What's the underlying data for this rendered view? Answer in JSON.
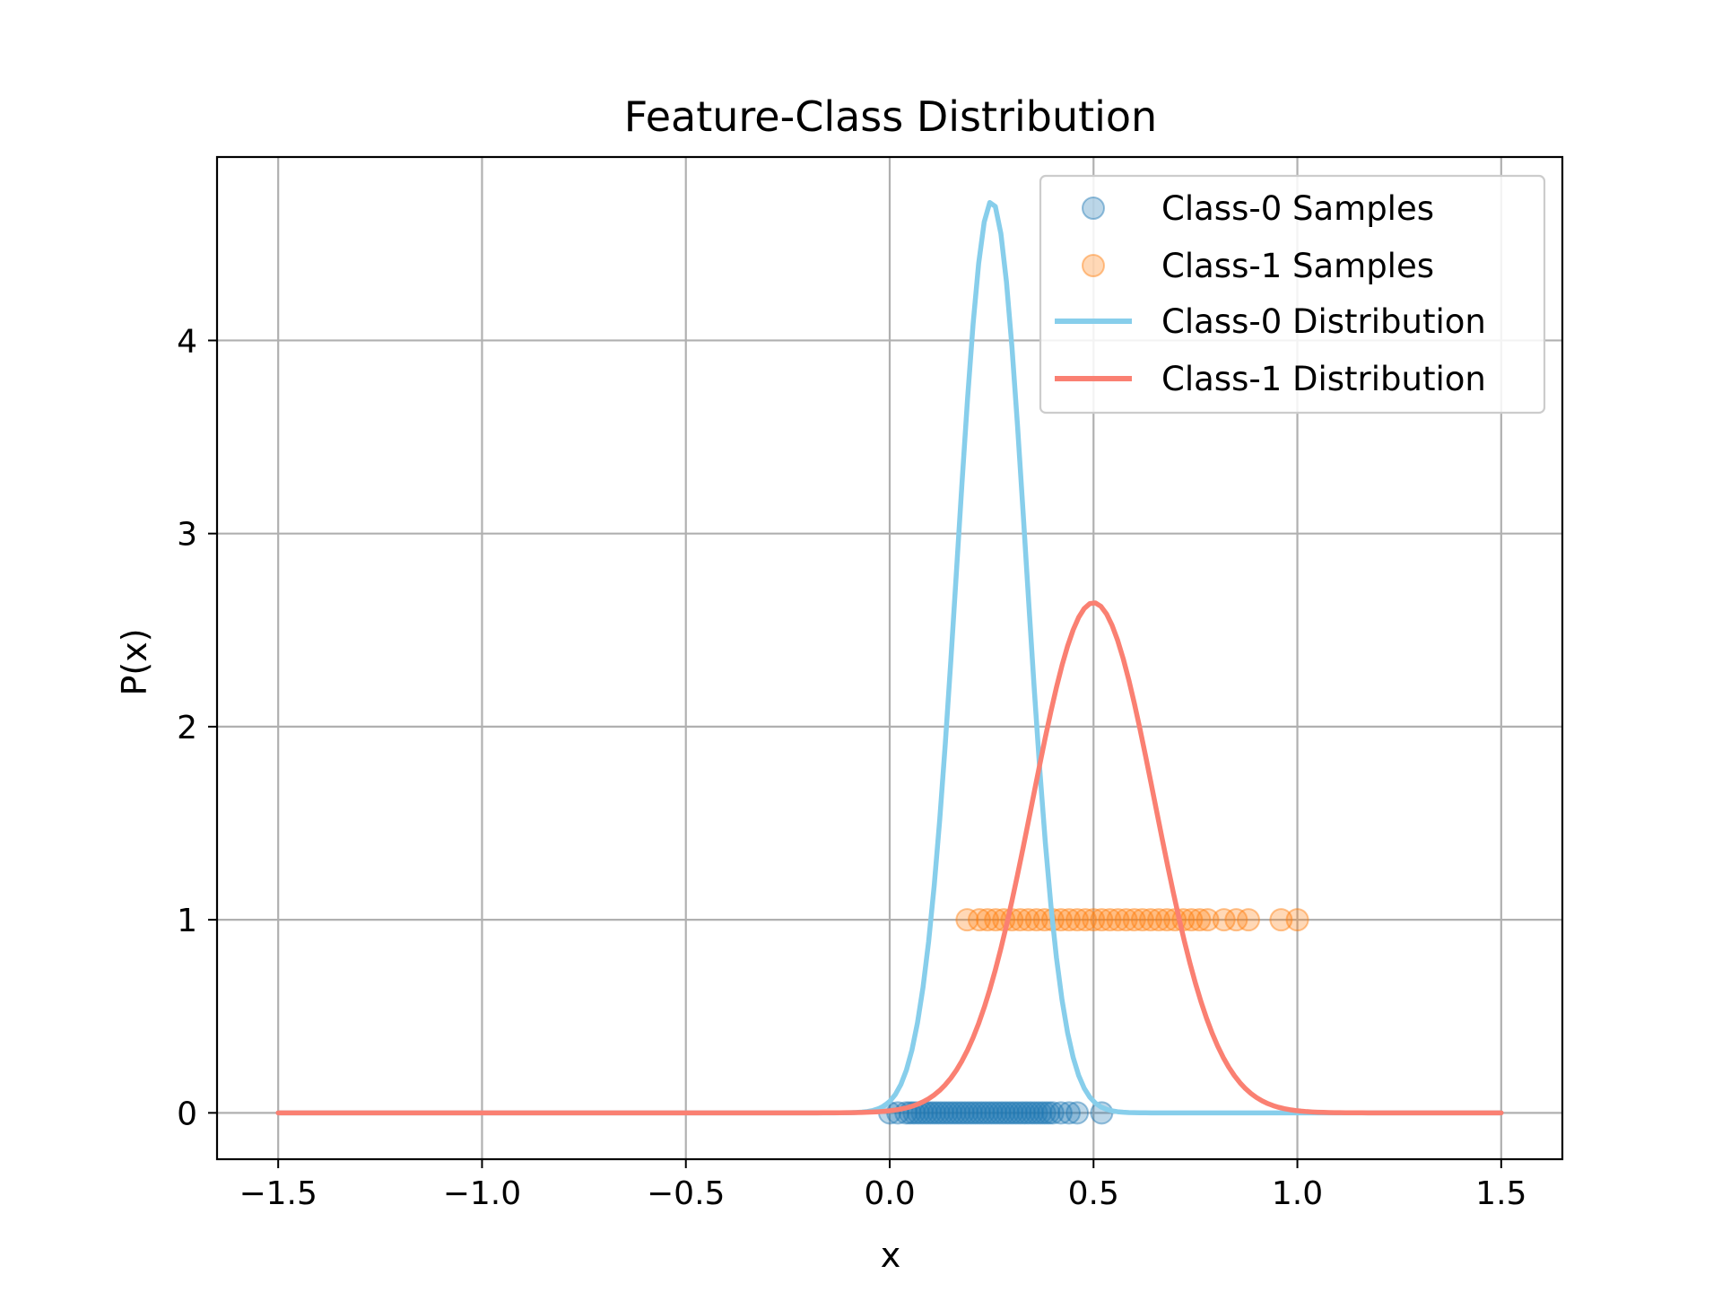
{
  "chart_data": {
    "type": "scatter",
    "title": "Feature-Class Distribution",
    "xlabel": "x",
    "ylabel": "P(x)",
    "xlim": [
      -1.65,
      1.65
    ],
    "ylim": [
      -0.24,
      4.95
    ],
    "xticks": [
      -1.5,
      -1.0,
      -0.5,
      0.0,
      0.5,
      1.0,
      1.5
    ],
    "xtick_labels": [
      "−1.5",
      "−1.0",
      "−0.5",
      "0.0",
      "0.5",
      "1.0",
      "1.5"
    ],
    "yticks": [
      0,
      1,
      2,
      3,
      4
    ],
    "ytick_labels": [
      "0",
      "1",
      "2",
      "3",
      "4"
    ],
    "grid": true,
    "legend_position": "top-right",
    "series": [
      {
        "name": "Class-0 Samples",
        "kind": "scatter",
        "color": "#1f77b4",
        "y": 0,
        "x": [
          0.0,
          0.02,
          0.04,
          0.05,
          0.06,
          0.07,
          0.08,
          0.09,
          0.1,
          0.11,
          0.12,
          0.13,
          0.14,
          0.15,
          0.16,
          0.17,
          0.18,
          0.19,
          0.2,
          0.21,
          0.22,
          0.23,
          0.24,
          0.25,
          0.26,
          0.27,
          0.28,
          0.29,
          0.3,
          0.31,
          0.32,
          0.33,
          0.34,
          0.35,
          0.36,
          0.37,
          0.38,
          0.39,
          0.4,
          0.42,
          0.44,
          0.46,
          0.52
        ]
      },
      {
        "name": "Class-1 Samples",
        "kind": "scatter",
        "color": "#ff7f0e",
        "y": 1,
        "x": [
          0.19,
          0.22,
          0.24,
          0.26,
          0.28,
          0.3,
          0.32,
          0.34,
          0.36,
          0.38,
          0.4,
          0.42,
          0.44,
          0.46,
          0.48,
          0.5,
          0.52,
          0.54,
          0.56,
          0.58,
          0.6,
          0.62,
          0.64,
          0.66,
          0.68,
          0.7,
          0.72,
          0.74,
          0.76,
          0.78,
          0.82,
          0.85,
          0.88,
          0.96,
          1.0
        ]
      },
      {
        "name": "Class-0 Distribution",
        "kind": "line",
        "color": "#87ceeb",
        "curve": {
          "mean": 0.25,
          "std": 0.0845,
          "x_start": -1.5,
          "x_end": 1.5
        }
      },
      {
        "name": "Class-1 Distribution",
        "kind": "line",
        "color": "#fa8072",
        "curve": {
          "mean": 0.5,
          "std": 0.151,
          "x_start": -1.5,
          "x_end": 1.5
        }
      }
    ]
  }
}
